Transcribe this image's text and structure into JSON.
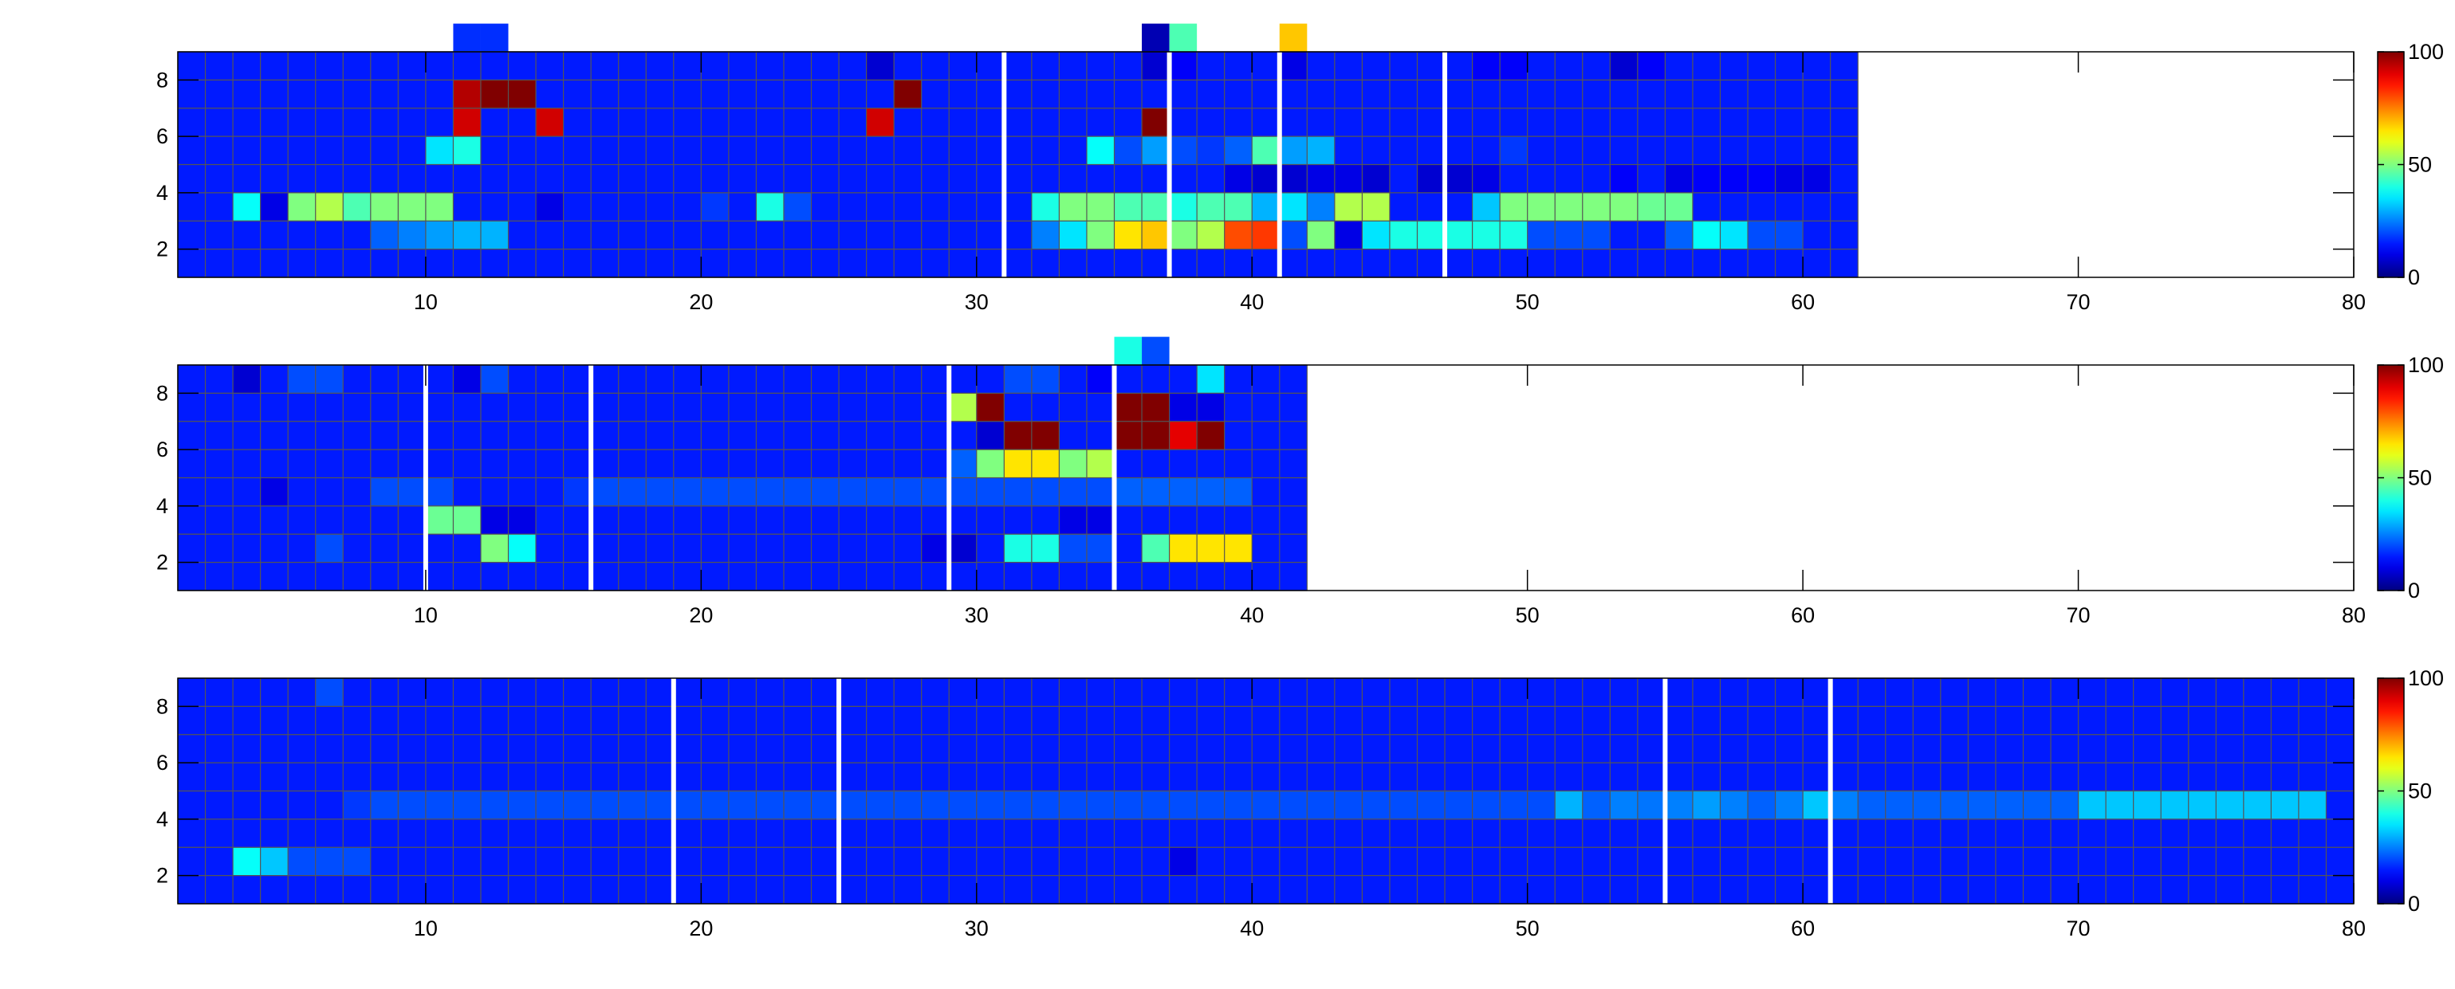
{
  "colors": {
    "background": "#142c6e",
    "grid": "#555555",
    "separator": "#ffffff",
    "axis": "#000000"
  },
  "colormap": "jet",
  "chart_data": [
    {
      "type": "heatmap",
      "xlim": [
        1,
        80
      ],
      "ylim": [
        1,
        9
      ],
      "x_ticks": [
        10,
        20,
        30,
        40,
        50,
        60,
        70,
        80
      ],
      "y_ticks": [
        2,
        4,
        6,
        8
      ],
      "data_x_range": [
        1,
        62
      ],
      "separators": [
        31,
        37,
        41,
        47
      ],
      "colorbar": {
        "min": 0,
        "max": 100,
        "ticks": [
          0,
          50,
          100
        ]
      },
      "base_value": 15,
      "cells": [
        [
          11,
          9,
          17
        ],
        [
          12,
          9,
          17
        ],
        [
          36,
          9,
          5
        ],
        [
          37,
          9,
          45
        ],
        [
          41,
          9,
          68
        ],
        [
          26,
          8,
          8
        ],
        [
          27,
          8,
          15
        ],
        [
          36,
          8,
          8
        ],
        [
          37,
          8,
          12
        ],
        [
          41,
          8,
          10
        ],
        [
          48,
          8,
          12
        ],
        [
          49,
          8,
          12
        ],
        [
          53,
          8,
          8
        ],
        [
          54,
          8,
          12
        ],
        [
          11,
          7,
          95
        ],
        [
          12,
          7,
          100
        ],
        [
          13,
          7,
          100
        ],
        [
          27,
          7,
          100
        ],
        [
          11,
          6,
          92
        ],
        [
          14,
          6,
          92
        ],
        [
          26,
          6,
          92
        ],
        [
          36,
          6,
          100
        ],
        [
          10,
          5,
          35
        ],
        [
          11,
          5,
          40
        ],
        [
          34,
          5,
          38
        ],
        [
          35,
          5,
          20
        ],
        [
          36,
          5,
          28
        ],
        [
          37,
          5,
          20
        ],
        [
          38,
          5,
          18
        ],
        [
          39,
          5,
          22
        ],
        [
          40,
          5,
          45
        ],
        [
          41,
          5,
          28
        ],
        [
          42,
          5,
          30
        ],
        [
          49,
          5,
          18
        ],
        [
          39,
          4,
          10
        ],
        [
          40,
          4,
          8
        ],
        [
          41,
          4,
          8
        ],
        [
          42,
          4,
          10
        ],
        [
          43,
          4,
          10
        ],
        [
          44,
          4,
          8
        ],
        [
          46,
          4,
          8
        ],
        [
          47,
          4,
          8
        ],
        [
          48,
          4,
          10
        ],
        [
          53,
          4,
          12
        ],
        [
          55,
          4,
          10
        ],
        [
          56,
          4,
          12
        ],
        [
          57,
          4,
          12
        ],
        [
          58,
          4,
          12
        ],
        [
          59,
          4,
          10
        ],
        [
          60,
          4,
          10
        ],
        [
          3,
          3,
          38
        ],
        [
          4,
          3,
          10
        ],
        [
          5,
          3,
          50
        ],
        [
          6,
          3,
          55
        ],
        [
          7,
          3,
          45
        ],
        [
          8,
          3,
          50
        ],
        [
          9,
          3,
          50
        ],
        [
          10,
          3,
          50
        ],
        [
          14,
          3,
          10
        ],
        [
          19,
          3,
          15
        ],
        [
          20,
          3,
          18
        ],
        [
          22,
          3,
          40
        ],
        [
          23,
          3,
          20
        ],
        [
          32,
          3,
          40
        ],
        [
          33,
          3,
          50
        ],
        [
          34,
          3,
          50
        ],
        [
          35,
          3,
          45
        ],
        [
          36,
          3,
          45
        ],
        [
          37,
          3,
          40
        ],
        [
          38,
          3,
          45
        ],
        [
          39,
          3,
          45
        ],
        [
          40,
          3,
          30
        ],
        [
          41,
          3,
          35
        ],
        [
          42,
          3,
          25
        ],
        [
          43,
          3,
          55
        ],
        [
          44,
          3,
          55
        ],
        [
          47,
          3,
          15
        ],
        [
          48,
          3,
          32
        ],
        [
          49,
          3,
          50
        ],
        [
          50,
          3,
          50
        ],
        [
          51,
          3,
          50
        ],
        [
          52,
          3,
          50
        ],
        [
          53,
          3,
          50
        ],
        [
          54,
          3,
          48
        ],
        [
          55,
          3,
          48
        ],
        [
          8,
          2,
          22
        ],
        [
          9,
          2,
          25
        ],
        [
          10,
          2,
          28
        ],
        [
          11,
          2,
          30
        ],
        [
          12,
          2,
          30
        ],
        [
          32,
          2,
          25
        ],
        [
          33,
          2,
          35
        ],
        [
          34,
          2,
          50
        ],
        [
          35,
          2,
          65
        ],
        [
          36,
          2,
          68
        ],
        [
          37,
          2,
          50
        ],
        [
          38,
          2,
          55
        ],
        [
          39,
          2,
          80
        ],
        [
          40,
          2,
          82
        ],
        [
          41,
          2,
          20
        ],
        [
          42,
          2,
          50
        ],
        [
          43,
          2,
          10
        ],
        [
          44,
          2,
          35
        ],
        [
          45,
          2,
          40
        ],
        [
          46,
          2,
          40
        ],
        [
          47,
          2,
          40
        ],
        [
          48,
          2,
          40
        ],
        [
          49,
          2,
          40
        ],
        [
          50,
          2,
          20
        ],
        [
          51,
          2,
          20
        ],
        [
          52,
          2,
          20
        ],
        [
          55,
          2,
          22
        ],
        [
          56,
          2,
          38
        ],
        [
          57,
          2,
          35
        ],
        [
          58,
          2,
          20
        ],
        [
          59,
          2,
          20
        ]
      ]
    },
    {
      "type": "heatmap",
      "xlim": [
        1,
        80
      ],
      "ylim": [
        1,
        9
      ],
      "x_ticks": [
        10,
        20,
        30,
        40,
        50,
        60,
        70,
        80
      ],
      "y_ticks": [
        2,
        4,
        6,
        8
      ],
      "data_x_range": [
        1,
        42
      ],
      "separators": [
        10,
        16,
        29,
        35
      ],
      "colorbar": {
        "min": 0,
        "max": 100,
        "ticks": [
          0,
          50,
          100
        ]
      },
      "base_value": 15,
      "cells": [
        [
          35,
          9,
          40
        ],
        [
          36,
          9,
          20
        ],
        [
          3,
          8,
          8
        ],
        [
          5,
          8,
          20
        ],
        [
          6,
          8,
          20
        ],
        [
          11,
          8,
          10
        ],
        [
          12,
          8,
          20
        ],
        [
          31,
          8,
          20
        ],
        [
          32,
          8,
          20
        ],
        [
          34,
          8,
          12
        ],
        [
          37,
          8,
          15
        ],
        [
          38,
          8,
          35
        ],
        [
          29,
          7,
          55
        ],
        [
          30,
          7,
          100
        ],
        [
          35,
          7,
          100
        ],
        [
          36,
          7,
          100
        ],
        [
          37,
          7,
          10
        ],
        [
          38,
          7,
          10
        ],
        [
          30,
          6,
          8
        ],
        [
          31,
          6,
          100
        ],
        [
          32,
          6,
          100
        ],
        [
          35,
          6,
          100
        ],
        [
          36,
          6,
          100
        ],
        [
          37,
          6,
          90
        ],
        [
          38,
          6,
          100
        ],
        [
          29,
          5,
          22
        ],
        [
          30,
          5,
          50
        ],
        [
          31,
          5,
          65
        ],
        [
          32,
          5,
          65
        ],
        [
          33,
          5,
          50
        ],
        [
          34,
          5,
          55
        ],
        [
          35,
          5,
          15
        ],
        [
          36,
          5,
          15
        ],
        [
          37,
          5,
          15
        ],
        [
          38,
          5,
          15
        ],
        [
          3,
          4,
          15
        ],
        [
          4,
          4,
          10
        ],
        [
          8,
          4,
          20
        ],
        [
          9,
          4,
          20
        ],
        [
          10,
          4,
          20
        ],
        [
          11,
          4,
          15
        ],
        [
          12,
          4,
          15
        ],
        [
          13,
          4,
          15
        ],
        [
          14,
          4,
          15
        ],
        [
          15,
          4,
          18
        ],
        [
          16,
          4,
          20
        ],
        [
          17,
          4,
          20
        ],
        [
          18,
          4,
          20
        ],
        [
          19,
          4,
          20
        ],
        [
          20,
          4,
          20
        ],
        [
          21,
          4,
          20
        ],
        [
          22,
          4,
          20
        ],
        [
          23,
          4,
          20
        ],
        [
          24,
          4,
          20
        ],
        [
          25,
          4,
          20
        ],
        [
          26,
          4,
          20
        ],
        [
          27,
          4,
          20
        ],
        [
          28,
          4,
          20
        ],
        [
          29,
          4,
          20
        ],
        [
          30,
          4,
          20
        ],
        [
          31,
          4,
          20
        ],
        [
          32,
          4,
          20
        ],
        [
          33,
          4,
          20
        ],
        [
          34,
          4,
          20
        ],
        [
          35,
          4,
          22
        ],
        [
          36,
          4,
          22
        ],
        [
          37,
          4,
          22
        ],
        [
          38,
          4,
          22
        ],
        [
          39,
          4,
          22
        ],
        [
          10,
          3,
          48
        ],
        [
          11,
          3,
          48
        ],
        [
          12,
          3,
          10
        ],
        [
          13,
          3,
          10
        ],
        [
          33,
          3,
          10
        ],
        [
          34,
          3,
          10
        ],
        [
          35,
          3,
          15
        ],
        [
          6,
          2,
          20
        ],
        [
          12,
          2,
          50
        ],
        [
          13,
          2,
          38
        ],
        [
          28,
          2,
          10
        ],
        [
          29,
          2,
          8
        ],
        [
          31,
          2,
          40
        ],
        [
          32,
          2,
          40
        ],
        [
          33,
          2,
          20
        ],
        [
          34,
          2,
          20
        ],
        [
          35,
          2,
          15
        ],
        [
          36,
          2,
          45
        ],
        [
          37,
          2,
          65
        ],
        [
          38,
          2,
          65
        ],
        [
          39,
          2,
          65
        ]
      ]
    },
    {
      "type": "heatmap",
      "xlim": [
        1,
        80
      ],
      "ylim": [
        1,
        9
      ],
      "x_ticks": [
        10,
        20,
        30,
        40,
        50,
        60,
        70,
        80
      ],
      "y_ticks": [
        2,
        4,
        6,
        8
      ],
      "data_x_range": [
        1,
        80
      ],
      "separators": [
        19,
        25,
        55,
        61
      ],
      "colorbar": {
        "min": 0,
        "max": 100,
        "ticks": [
          0,
          50,
          100
        ]
      },
      "base_value": 15,
      "cells": [
        [
          6,
          8,
          20
        ],
        [
          6,
          4,
          15
        ],
        [
          7,
          4,
          18
        ],
        [
          8,
          4,
          20
        ],
        [
          9,
          4,
          20
        ],
        [
          10,
          4,
          20
        ],
        [
          11,
          4,
          20
        ],
        [
          12,
          4,
          20
        ],
        [
          13,
          4,
          20
        ],
        [
          14,
          4,
          20
        ],
        [
          15,
          4,
          20
        ],
        [
          16,
          4,
          20
        ],
        [
          17,
          4,
          20
        ],
        [
          18,
          4,
          20
        ],
        [
          19,
          4,
          20
        ],
        [
          20,
          4,
          20
        ],
        [
          21,
          4,
          20
        ],
        [
          22,
          4,
          20
        ],
        [
          23,
          4,
          20
        ],
        [
          24,
          4,
          20
        ],
        [
          25,
          4,
          20
        ],
        [
          26,
          4,
          20
        ],
        [
          27,
          4,
          20
        ],
        [
          28,
          4,
          20
        ],
        [
          29,
          4,
          20
        ],
        [
          30,
          4,
          20
        ],
        [
          31,
          4,
          20
        ],
        [
          32,
          4,
          20
        ],
        [
          33,
          4,
          20
        ],
        [
          34,
          4,
          20
        ],
        [
          35,
          4,
          20
        ],
        [
          36,
          4,
          20
        ],
        [
          37,
          4,
          20
        ],
        [
          38,
          4,
          20
        ],
        [
          39,
          4,
          20
        ],
        [
          40,
          4,
          20
        ],
        [
          41,
          4,
          20
        ],
        [
          42,
          4,
          20
        ],
        [
          43,
          4,
          20
        ],
        [
          44,
          4,
          20
        ],
        [
          45,
          4,
          20
        ],
        [
          46,
          4,
          20
        ],
        [
          47,
          4,
          20
        ],
        [
          48,
          4,
          20
        ],
        [
          49,
          4,
          20
        ],
        [
          50,
          4,
          20
        ],
        [
          51,
          4,
          30
        ],
        [
          52,
          4,
          22
        ],
        [
          53,
          4,
          25
        ],
        [
          54,
          4,
          24
        ],
        [
          55,
          4,
          25
        ],
        [
          56,
          4,
          28
        ],
        [
          57,
          4,
          25
        ],
        [
          58,
          4,
          22
        ],
        [
          59,
          4,
          25
        ],
        [
          60,
          4,
          32
        ],
        [
          61,
          4,
          25
        ],
        [
          62,
          4,
          22
        ],
        [
          63,
          4,
          22
        ],
        [
          64,
          4,
          22
        ],
        [
          65,
          4,
          22
        ],
        [
          66,
          4,
          22
        ],
        [
          67,
          4,
          22
        ],
        [
          68,
          4,
          22
        ],
        [
          69,
          4,
          22
        ],
        [
          70,
          4,
          32
        ],
        [
          71,
          4,
          32
        ],
        [
          72,
          4,
          32
        ],
        [
          73,
          4,
          32
        ],
        [
          74,
          4,
          32
        ],
        [
          75,
          4,
          32
        ],
        [
          76,
          4,
          32
        ],
        [
          77,
          4,
          32
        ],
        [
          78,
          4,
          32
        ],
        [
          3,
          2,
          38
        ],
        [
          4,
          2,
          32
        ],
        [
          5,
          2,
          20
        ],
        [
          6,
          2,
          20
        ],
        [
          7,
          2,
          20
        ],
        [
          37,
          2,
          10
        ]
      ]
    }
  ]
}
